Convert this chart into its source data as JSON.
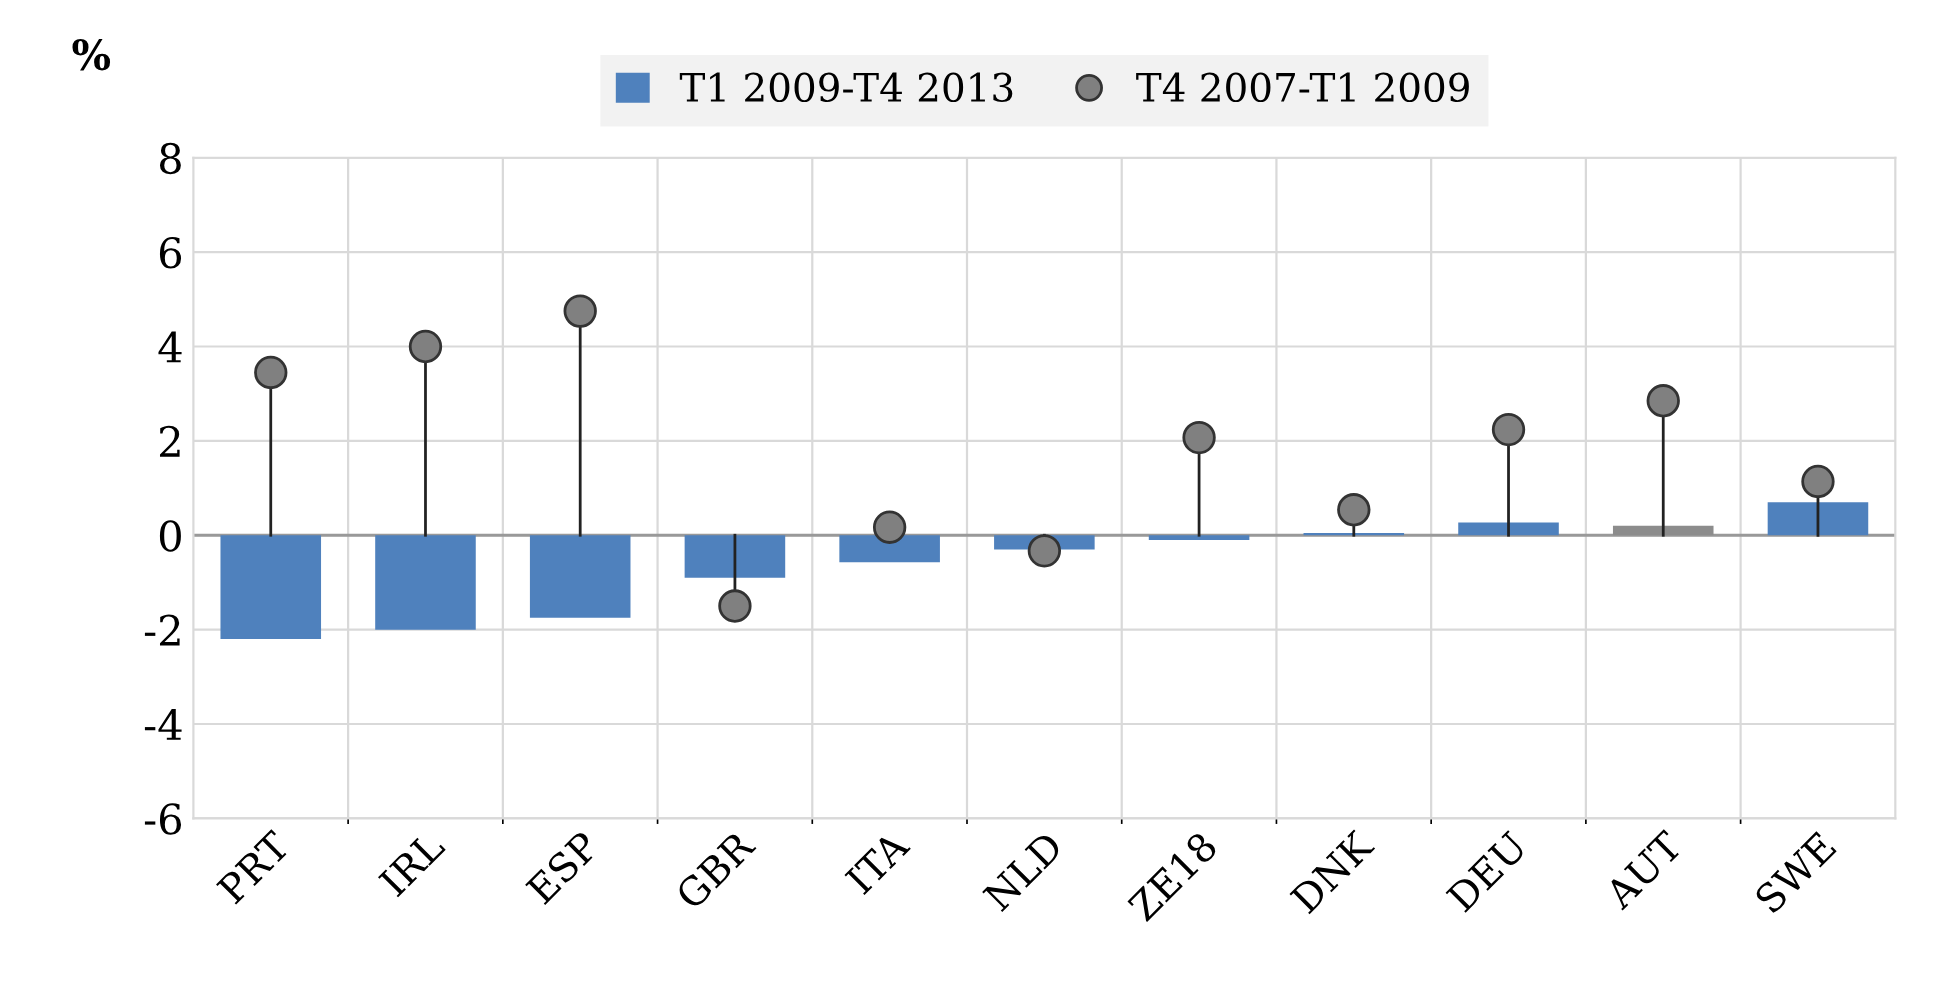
{
  "chart_data": {
    "type": "bar",
    "ylabel": "%",
    "categories": [
      "PRT",
      "IRL",
      "ESP",
      "GBR",
      "ITA",
      "NLD",
      "ZE18",
      "DNK",
      "DEU",
      "AUT",
      "SWE"
    ],
    "series": [
      {
        "name": "T1 2009-T4 2013",
        "color": "#4f81bd",
        "colors": [
          "#4f81bd",
          "#4f81bd",
          "#4f81bd",
          "#4f81bd",
          "#4f81bd",
          "#4f81bd",
          "#4f81bd",
          "#4f81bd",
          "#4f81bd",
          "#8c8c8c",
          "#4f81bd"
        ],
        "values": [
          -2.2,
          -2.0,
          -1.75,
          -0.9,
          -0.57,
          -0.3,
          -0.1,
          0.05,
          0.27,
          0.2,
          0.7
        ]
      },
      {
        "name": "T4 2007-T1 2009",
        "type": "lollipop",
        "color": "#808080",
        "values": [
          3.45,
          4.0,
          4.75,
          -1.5,
          0.17,
          -0.33,
          2.07,
          0.54,
          2.24,
          2.85,
          1.14
        ]
      }
    ],
    "ylim": [
      -6,
      8
    ],
    "yticks": [
      -6,
      -4,
      -2,
      0,
      2,
      4,
      6,
      8
    ],
    "grid": true,
    "legend": "top",
    "marker": "circle"
  }
}
